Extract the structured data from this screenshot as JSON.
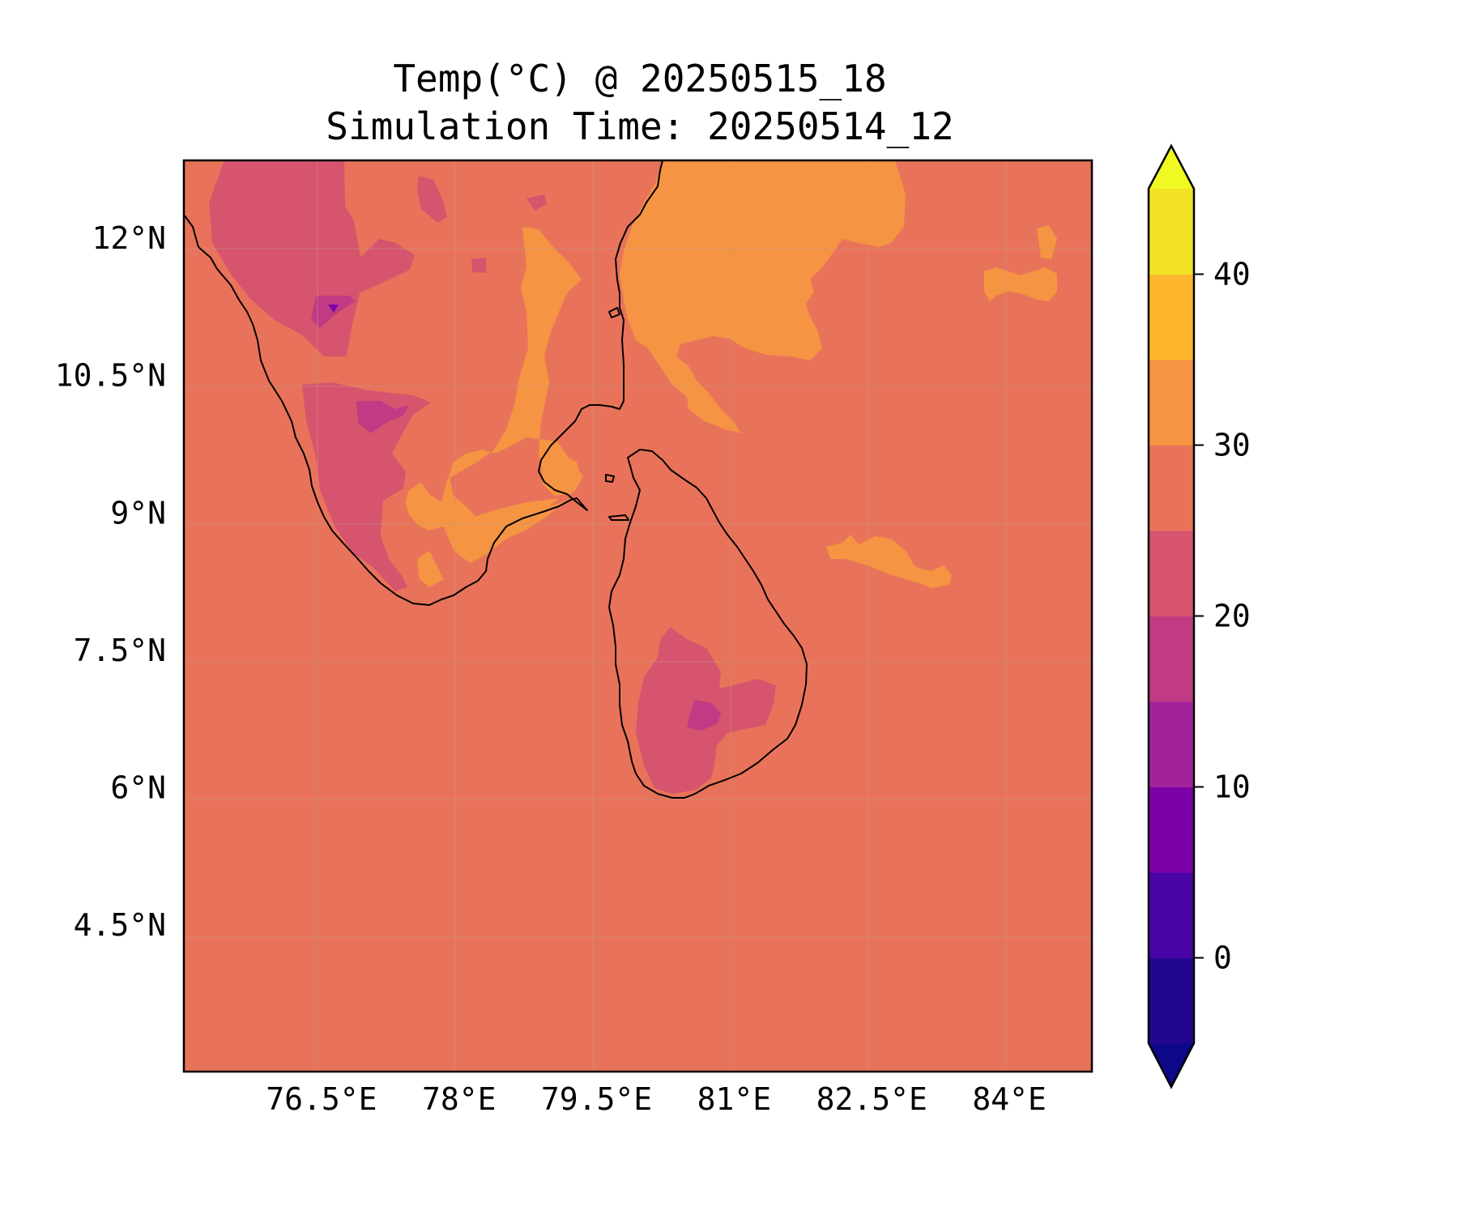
{
  "figure": {
    "title_line1": "Temp(°C) @ 20250515_18",
    "title_line2": "Simulation Time: 20250514_12"
  },
  "map": {
    "type": "filled-contour",
    "variable": "Temp(°C)",
    "extent": {
      "lon_min": 75.0,
      "lon_max": 84.9,
      "lat_min": 2.9,
      "lat_max": 12.85
    },
    "x_ticks": [
      {
        "value": 76.5,
        "label": "76.5°E"
      },
      {
        "value": 78.0,
        "label": "78°E"
      },
      {
        "value": 79.5,
        "label": "79.5°E"
      },
      {
        "value": 81.0,
        "label": "81°E"
      },
      {
        "value": 82.5,
        "label": "82.5°E"
      },
      {
        "value": 84.0,
        "label": "84°E"
      }
    ],
    "y_ticks": [
      {
        "value": 12.0,
        "label": "12°N"
      },
      {
        "value": 10.5,
        "label": "10.5°N"
      },
      {
        "value": 9.0,
        "label": "9°N"
      },
      {
        "value": 7.5,
        "label": "7.5°N"
      },
      {
        "value": 6.0,
        "label": "6°N"
      },
      {
        "value": 4.5,
        "label": "4.5°N"
      }
    ],
    "gridlines": true,
    "background_level_color": "#e8735a"
  },
  "colorbar": {
    "orientation": "vertical",
    "position": "right",
    "extend": "both",
    "levels": [
      -5,
      0,
      5,
      10,
      15,
      20,
      25,
      30,
      35,
      40,
      45
    ],
    "colors": [
      "#22068f",
      "#4a03a4",
      "#7c02a8",
      "#a2229c",
      "#c13a84",
      "#d6546e",
      "#e8735a",
      "#f59442",
      "#fdb62c",
      "#f1e324"
    ],
    "under_color": "#0d0887",
    "over_color": "#f0f921",
    "ticks": [
      {
        "value": 0,
        "label": "0"
      },
      {
        "value": 10,
        "label": "10"
      },
      {
        "value": 20,
        "label": "20"
      },
      {
        "value": 30,
        "label": "30"
      },
      {
        "value": 40,
        "label": "40"
      }
    ]
  }
}
